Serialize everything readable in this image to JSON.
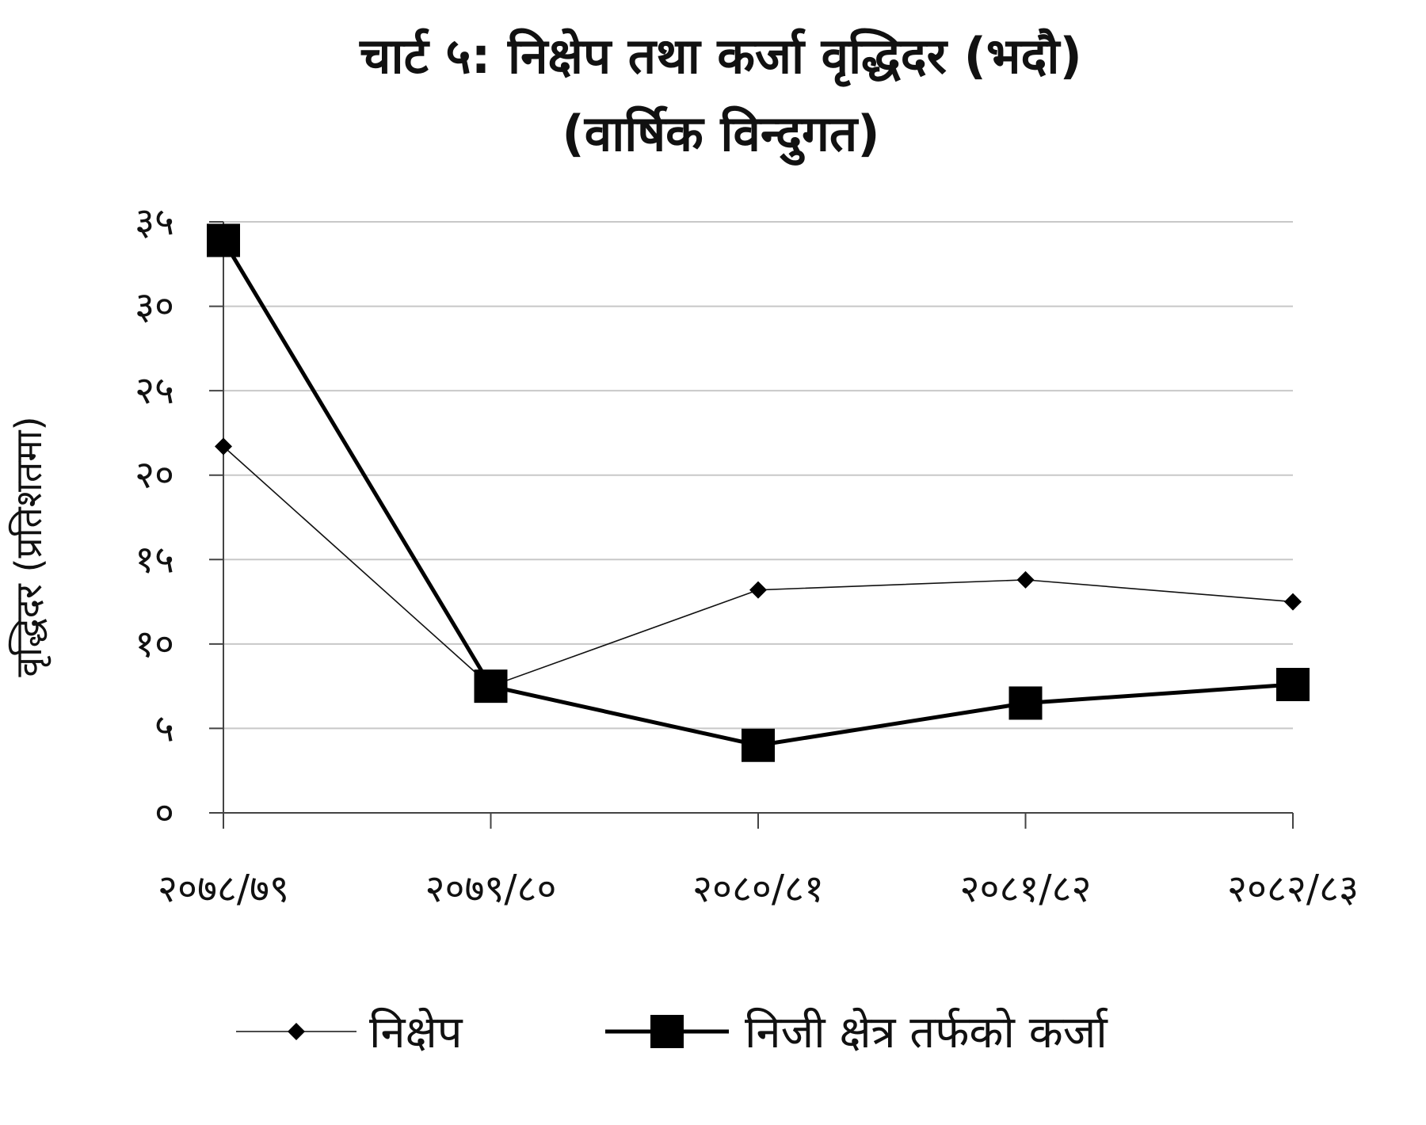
{
  "chart_data": {
    "type": "line",
    "title": "चार्ट ५: निक्षेप तथा कर्जा वृद्धिदर (भदौ)",
    "subtitle": "(वार्षिक विन्दुगत)",
    "ylabel": "वृद्धिदर (प्रतिशतमा)",
    "xlabel": "",
    "categories": [
      "२०७८/७९",
      "२०७९/८०",
      "२०८०/८१",
      "२०८१/८२",
      "२०८२/८३"
    ],
    "ylim": [
      0,
      35
    ],
    "yticks": [
      0,
      5,
      10,
      15,
      20,
      25,
      30,
      35
    ],
    "ytick_labels": [
      "०",
      "५",
      "१०",
      "१५",
      "२०",
      "२५",
      "३०",
      "३५"
    ],
    "grid": true,
    "legend_position": "bottom",
    "series": [
      {
        "name": "निक्षेप",
        "values": [
          21.7,
          7.5,
          13.2,
          13.8,
          12.5
        ],
        "color": "#111111",
        "marker": "diamond"
      },
      {
        "name": "निजी क्षेत्र तर्फको कर्जा",
        "values": [
          33.9,
          7.5,
          4.0,
          6.5,
          7.6
        ],
        "color": "#000000",
        "marker": "square"
      }
    ]
  }
}
